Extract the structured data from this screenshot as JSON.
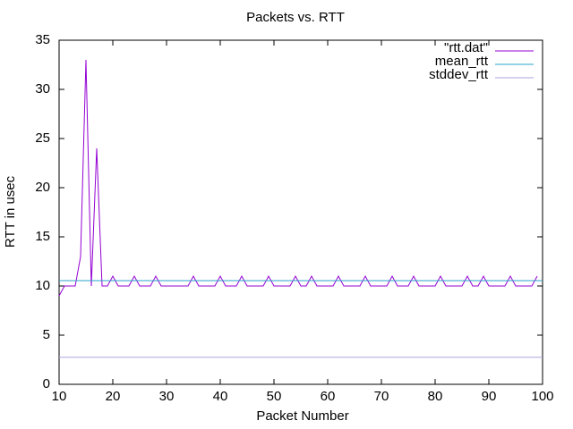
{
  "chart_data": {
    "type": "line",
    "title": "Packets vs. RTT",
    "xlabel": "Packet Number",
    "ylabel": "RTT in usec",
    "x": [
      10,
      11,
      12,
      13,
      14,
      15,
      16,
      17,
      18,
      19,
      20,
      21,
      22,
      23,
      24,
      25,
      26,
      27,
      28,
      29,
      30,
      31,
      32,
      33,
      34,
      35,
      36,
      37,
      38,
      39,
      40,
      41,
      42,
      43,
      44,
      45,
      46,
      47,
      48,
      49,
      50,
      51,
      52,
      53,
      54,
      55,
      56,
      57,
      58,
      59,
      60,
      61,
      62,
      63,
      64,
      65,
      66,
      67,
      68,
      69,
      70,
      71,
      72,
      73,
      74,
      75,
      76,
      77,
      78,
      79,
      80,
      81,
      82,
      83,
      84,
      85,
      86,
      87,
      88,
      89,
      90,
      91,
      92,
      93,
      94,
      95,
      96,
      97,
      98,
      99
    ],
    "series": [
      {
        "name": "\"rtt.dat\"",
        "color": "#9400d3",
        "values": [
          9,
          10,
          10,
          10,
          13,
          33,
          10,
          24,
          10,
          10,
          11,
          10,
          10,
          10,
          11,
          10,
          10,
          10,
          11,
          10,
          10,
          10,
          10,
          10,
          10,
          11,
          10,
          10,
          10,
          10,
          11,
          10,
          10,
          10,
          11,
          10,
          10,
          10,
          10,
          11,
          10,
          10,
          10,
          10,
          11,
          10,
          10,
          11,
          10,
          10,
          10,
          10,
          11,
          10,
          10,
          10,
          10,
          11,
          10,
          10,
          10,
          10,
          11,
          10,
          10,
          10,
          11,
          10,
          10,
          10,
          10,
          11,
          10,
          10,
          10,
          10,
          11,
          10,
          10,
          11,
          10,
          10,
          10,
          10,
          11,
          10,
          10,
          10,
          10,
          11
        ]
      },
      {
        "name": "mean_rtt",
        "color": "#2aa3c9",
        "constant": 10.55
      },
      {
        "name": "stddev_rtt",
        "color": "#a9a6dc",
        "constant": 2.75
      }
    ],
    "xlim": [
      10,
      100
    ],
    "xticks": [
      10,
      20,
      30,
      40,
      50,
      60,
      70,
      80,
      90,
      100
    ],
    "ylim": [
      0,
      35
    ],
    "yticks": [
      0,
      5,
      10,
      15,
      20,
      25,
      30,
      35
    ],
    "legend": "top-right"
  }
}
